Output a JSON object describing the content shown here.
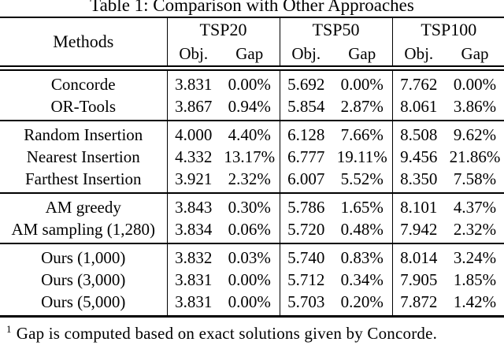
{
  "colors": {
    "background": "#ffffff",
    "text": "#000000",
    "rule": "#000000"
  },
  "title": "Table 1: Comparison with Other Approaches",
  "table": {
    "columns": {
      "methods": "Methods",
      "groups": [
        "TSP20",
        "TSP50",
        "TSP100"
      ],
      "sub": [
        "Obj.",
        "Gap"
      ]
    },
    "sections": [
      {
        "rows": [
          {
            "method": "Concorde",
            "values": [
              "3.831",
              "0.00%",
              "5.692",
              "0.00%",
              "7.762",
              "0.00%"
            ]
          },
          {
            "method": "OR-Tools",
            "values": [
              "3.867",
              "0.94%",
              "5.854",
              "2.87%",
              "8.061",
              "3.86%"
            ]
          }
        ]
      },
      {
        "rows": [
          {
            "method": "Random Insertion",
            "values": [
              "4.000",
              "4.40%",
              "6.128",
              "7.66%",
              "8.508",
              "9.62%"
            ]
          },
          {
            "method": "Nearest Insertion",
            "values": [
              "4.332",
              "13.17%",
              "6.777",
              "19.11%",
              "9.456",
              "21.86%"
            ]
          },
          {
            "method": "Farthest Insertion",
            "values": [
              "3.921",
              "2.32%",
              "6.007",
              "5.52%",
              "8.350",
              "7.58%"
            ]
          }
        ]
      },
      {
        "rows": [
          {
            "method": "AM greedy",
            "values": [
              "3.843",
              "0.30%",
              "5.786",
              "1.65%",
              "8.101",
              "4.37%"
            ]
          },
          {
            "method": "AM sampling (1,280)",
            "values": [
              "3.834",
              "0.06%",
              "5.720",
              "0.48%",
              "7.942",
              "2.32%"
            ]
          }
        ]
      },
      {
        "rows": [
          {
            "method": "Ours (1,000)",
            "values": [
              "3.832",
              "0.03%",
              "5.740",
              "0.83%",
              "8.014",
              "3.24%"
            ],
            "bold": [
              false,
              false,
              false,
              false,
              false,
              false
            ]
          },
          {
            "method": "Ours (3,000)",
            "values": [
              "3.831",
              "0.00%",
              "5.712",
              "0.34%",
              "7.905",
              "1.85%"
            ],
            "bold": [
              true,
              true,
              false,
              false,
              false,
              false
            ]
          },
          {
            "method": "Ours (5,000)",
            "values": [
              "3.831",
              "0.00%",
              "5.703",
              "0.20%",
              "7.872",
              "1.42%"
            ],
            "bold": [
              true,
              true,
              true,
              true,
              true,
              true
            ]
          }
        ]
      }
    ]
  },
  "footnote": {
    "marker": "1",
    "text": "Gap is computed based on exact solutions given by Concorde."
  }
}
